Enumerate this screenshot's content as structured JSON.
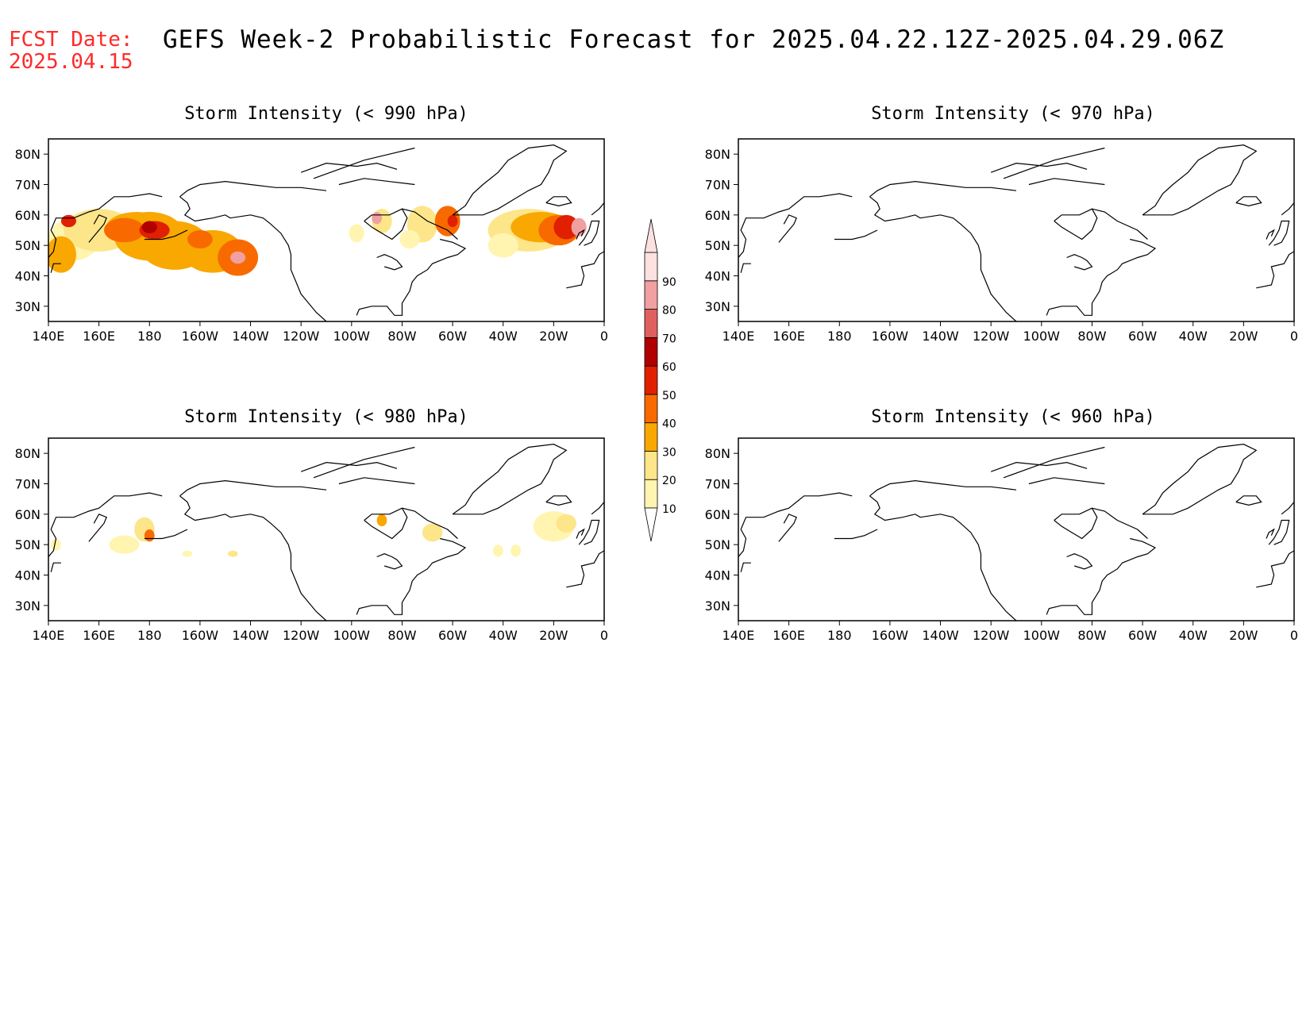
{
  "header": {
    "fcst_label": "FCST Date:",
    "fcst_date": "2025.04.15",
    "title": "GEFS Week-2 Probabilistic Forecast for 2025.04.22.12Z-2025.04.29.06Z"
  },
  "axes": {
    "lon_ticks": [
      "140E",
      "160E",
      "180",
      "160W",
      "140W",
      "120W",
      "100W",
      "80W",
      "60W",
      "40W",
      "20W",
      "0"
    ],
    "lat_ticks": [
      "80N",
      "70N",
      "60N",
      "50N",
      "40N",
      "30N"
    ]
  },
  "panels": [
    {
      "title": "Storm Intensity (< 990 hPa)"
    },
    {
      "title": "Storm Intensity (< 970 hPa)"
    },
    {
      "title": "Storm Intensity (< 980 hPa)"
    },
    {
      "title": "Storm Intensity (< 960 hPa)"
    }
  ],
  "colorbar": {
    "levels": [
      "10",
      "20",
      "30",
      "40",
      "50",
      "60",
      "70",
      "80",
      "90"
    ],
    "colors": [
      "#fff5b0",
      "#fde58a",
      "#f8a800",
      "#f86a00",
      "#e02000",
      "#b00000",
      "#e06060",
      "#f0a0a0",
      "#fde0e0"
    ]
  }
}
